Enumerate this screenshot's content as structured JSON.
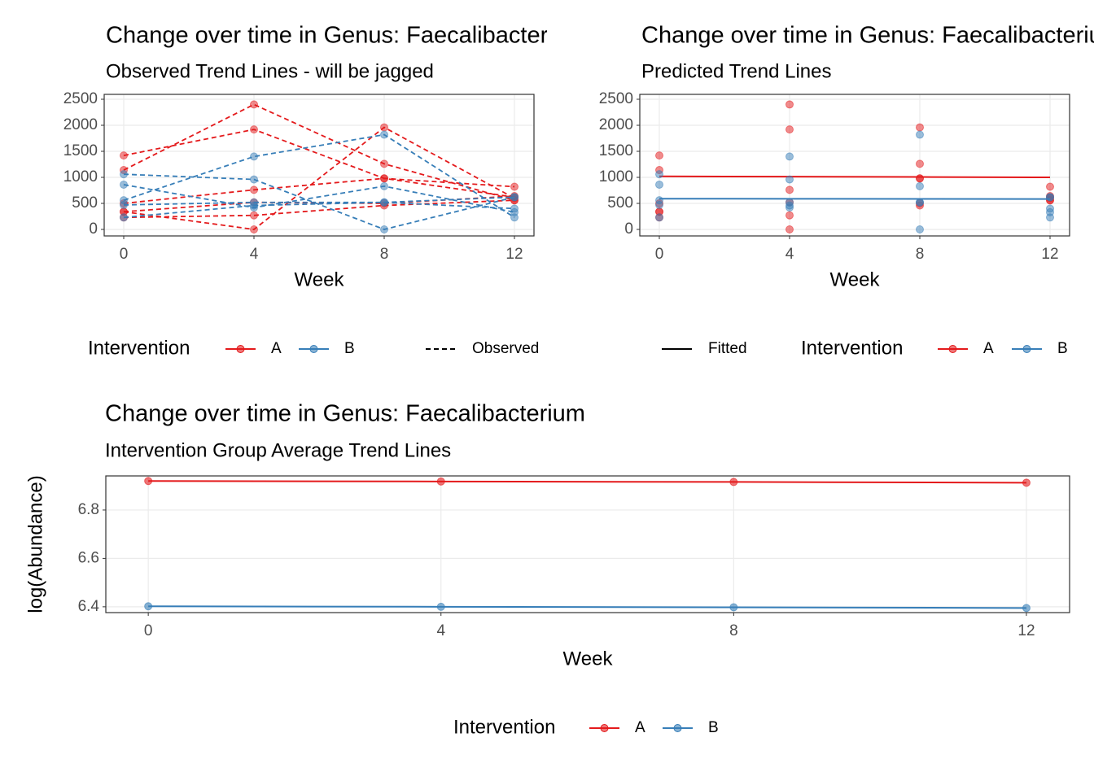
{
  "chart_data": [
    {
      "type": "line",
      "title": "Change over time in Genus: Faecalibacterium",
      "subtitle": "Observed Trend Lines - will be jagged",
      "x_label": "Week",
      "x": [
        0,
        4,
        8,
        12
      ],
      "xlim": [
        -0.6,
        12.6
      ],
      "xticks": [
        0,
        4,
        8,
        12
      ],
      "ylim": [
        -125,
        2594
      ],
      "yticks": [
        0,
        500,
        1000,
        1500,
        2000,
        2500
      ],
      "grid": true,
      "linestyle": "dashed",
      "legend_title": "Intervention",
      "line_legend": "Observed",
      "groups": [
        {
          "name": "A",
          "color": "#E41A1C",
          "subjects": [
            [
              1140,
              2400,
              1260,
              560
            ],
            [
              1420,
              1920,
              980,
              620
            ],
            [
              340,
              0,
              1960,
              600
            ],
            [
              500,
              760,
              980,
              820
            ],
            [
              340,
              520,
              500,
              640
            ],
            [
              230,
              270,
              460,
              560
            ]
          ]
        },
        {
          "name": "B",
          "color": "#377EB8",
          "subjects": [
            [
              1060,
              960,
              0,
              620
            ],
            [
              860,
              420,
              830,
              330
            ],
            [
              560,
              1400,
              1820,
              230
            ],
            [
              470,
              520,
              520,
              400
            ],
            [
              230,
              460,
              520,
              620
            ]
          ]
        }
      ]
    },
    {
      "type": "line",
      "title": "Change over time in Genus: Faecalibacterium",
      "subtitle": "Predicted Trend Lines",
      "x_label": "Week",
      "x": [
        0,
        4,
        8,
        12
      ],
      "xlim": [
        -0.6,
        12.6
      ],
      "xticks": [
        0,
        4,
        8,
        12
      ],
      "ylim": [
        -125,
        2594
      ],
      "yticks": [
        0,
        500,
        1000,
        1500,
        2000,
        2500
      ],
      "grid": true,
      "linestyle": "solid",
      "legend_title": "Intervention",
      "line_legend": "Fitted",
      "groups": [
        {
          "name": "A",
          "color": "#E41A1C",
          "fitted": [
            1020,
            1013,
            1007,
            1000
          ],
          "subjects": [
            [
              1140,
              2400,
              1260,
              560
            ],
            [
              1420,
              1920,
              980,
              620
            ],
            [
              340,
              0,
              1960,
              600
            ],
            [
              500,
              760,
              980,
              820
            ],
            [
              340,
              520,
              500,
              640
            ],
            [
              230,
              270,
              460,
              560
            ]
          ]
        },
        {
          "name": "B",
          "color": "#377EB8",
          "fitted": [
            590,
            588,
            586,
            584
          ],
          "subjects": [
            [
              1060,
              960,
              0,
              620
            ],
            [
              860,
              420,
              830,
              330
            ],
            [
              560,
              1400,
              1820,
              230
            ],
            [
              470,
              520,
              520,
              400
            ],
            [
              230,
              460,
              520,
              620
            ]
          ]
        }
      ]
    },
    {
      "type": "line",
      "title": "Change over time in Genus: Faecalibacterium",
      "subtitle": "Intervention Group Average Trend Lines",
      "x_label": "Week",
      "y_label": "log(Abundance)",
      "x": [
        0,
        4,
        8,
        12
      ],
      "xlim": [
        -0.58,
        12.59
      ],
      "xticks": [
        0,
        4,
        8,
        12
      ],
      "ylim": [
        6.376,
        6.941
      ],
      "yticks": [
        6.4,
        6.6,
        6.8
      ],
      "grid": true,
      "legend_title": "Intervention",
      "series": [
        {
          "name": "A",
          "color": "#E41A1C",
          "values": [
            6.92,
            6.918,
            6.916,
            6.913
          ]
        },
        {
          "name": "B",
          "color": "#377EB8",
          "values": [
            6.402,
            6.4,
            6.398,
            6.395
          ]
        }
      ]
    }
  ]
}
